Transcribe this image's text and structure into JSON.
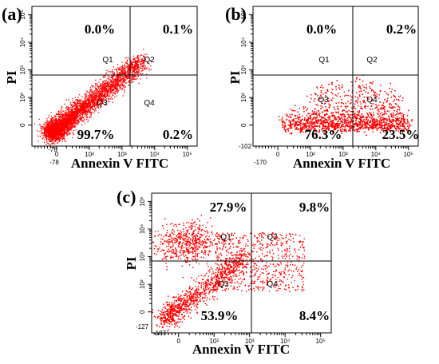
{
  "chart_data": [
    {
      "type": "scatter",
      "panel_label": "(a)",
      "title": "",
      "xlabel": "Annexin V FITC",
      "ylabel": "PI",
      "x_scale": "biexponential",
      "y_scale": "biexponential",
      "x_min_label": "-78",
      "y_min_label": "-78",
      "x_ticks": [
        "0",
        "10²",
        "10³",
        "10⁴",
        "10⁵"
      ],
      "y_ticks": [
        "0",
        "10²",
        "10³",
        "10⁴",
        "10⁵"
      ],
      "quadrants": [
        {
          "name": "Q1",
          "percent": "0.0%"
        },
        {
          "name": "Q2",
          "percent": "0.1%"
        },
        {
          "name": "Q3",
          "percent": "99.7%"
        },
        {
          "name": "Q4",
          "percent": "0.2%"
        }
      ],
      "point_color": "#ff0000"
    },
    {
      "type": "scatter",
      "panel_label": "(b)",
      "title": "",
      "xlabel": "Annexin V FITC",
      "ylabel": "PI",
      "x_scale": "biexponential",
      "y_scale": "biexponential",
      "x_min_label": "-170",
      "y_min_label": "-102",
      "x_ticks": [
        "0",
        "10²",
        "10³",
        "10⁴",
        "10⁵"
      ],
      "y_ticks": [
        "0",
        "10²",
        "10³",
        "10⁴",
        "10⁵"
      ],
      "quadrants": [
        {
          "name": "Q1",
          "percent": "0.0%"
        },
        {
          "name": "Q2",
          "percent": "0.2%"
        },
        {
          "name": "Q3",
          "percent": "76.3%"
        },
        {
          "name": "Q4",
          "percent": "23.5%"
        }
      ],
      "point_color": "#ff0000"
    },
    {
      "type": "scatter",
      "panel_label": "(c)",
      "title": "",
      "xlabel": "Annexin V FITC",
      "ylabel": "PI",
      "x_scale": "biexponential",
      "y_scale": "biexponential",
      "x_min_label": "-187",
      "y_min_label": "-127",
      "x_ticks": [
        "0",
        "10²",
        "10³",
        "10⁴",
        "10⁵"
      ],
      "y_ticks": [
        "0",
        "10²",
        "10³",
        "10⁴",
        "10⁵"
      ],
      "quadrants": [
        {
          "name": "Q1",
          "percent": "27.9%"
        },
        {
          "name": "Q2",
          "percent": "9.8%"
        },
        {
          "name": "Q3",
          "percent": "53.9%"
        },
        {
          "name": "Q4",
          "percent": "8.4%"
        }
      ],
      "point_color": "#ff0000"
    }
  ]
}
